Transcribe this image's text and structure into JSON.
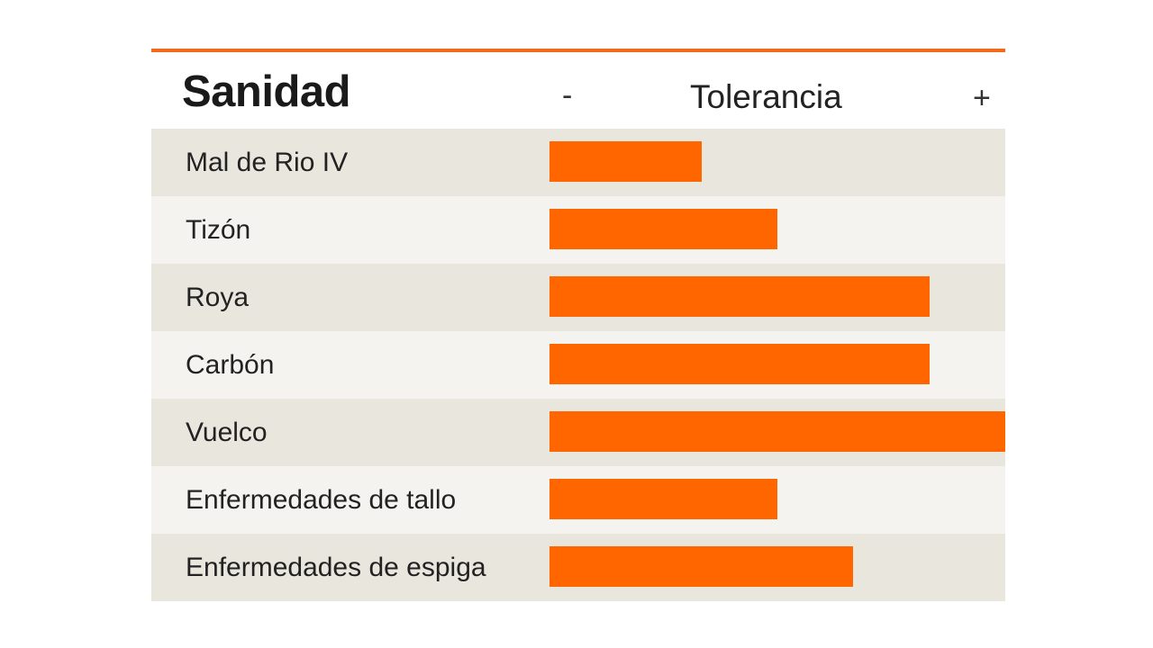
{
  "header": {
    "title": "Sanidad",
    "scale_min": "-",
    "scale_label": "Tolerancia",
    "scale_max": "+"
  },
  "chart_data": {
    "type": "bar",
    "orientation": "horizontal",
    "title": "Sanidad",
    "xlabel": "Tolerancia",
    "ylabel": "",
    "scale_ends": [
      "-",
      "+"
    ],
    "categories": [
      "Mal de Rio IV",
      "Tizón",
      "Roya",
      "Carbón",
      "Vuelco",
      "Enfermedades de tallo",
      "Enfermedades de espiga"
    ],
    "values": [
      2,
      3,
      5,
      5,
      6,
      3,
      4
    ],
    "xlim": [
      0,
      6
    ],
    "grid": false,
    "bar_color": "#ff6600",
    "accent_color": "#f26a1b",
    "row_colors": [
      "#e8e6dd",
      "#f5f3f0"
    ]
  }
}
